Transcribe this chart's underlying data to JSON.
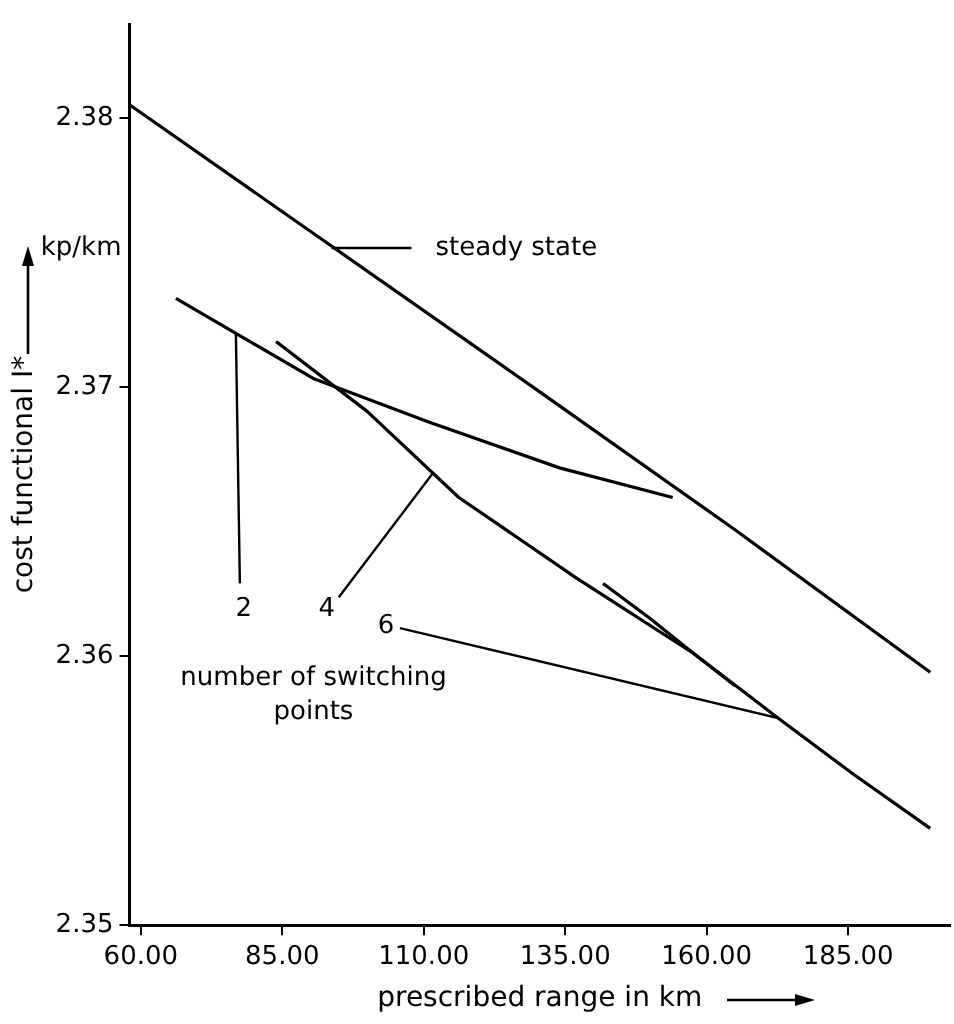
{
  "chart_data": {
    "type": "line",
    "xlabel": "prescribed range in km",
    "ylabel": "cost functional I*",
    "xlim": [
      58,
      203
    ],
    "ylim": [
      2.35,
      2.3835
    ],
    "xticks": [
      {
        "value": 60,
        "label": "60.00"
      },
      {
        "value": 85,
        "label": "85.00"
      },
      {
        "value": 110,
        "label": "110.00"
      },
      {
        "value": 135,
        "label": "135.00"
      },
      {
        "value": 160,
        "label": "160.00"
      },
      {
        "value": 185,
        "label": "185.00"
      }
    ],
    "yticks": [
      2.35,
      2.36,
      2.37,
      2.38
    ],
    "legend": false,
    "marker": "none",
    "line_style": "solid",
    "grid": false,
    "series": [
      {
        "color": "#000000",
        "x": [
          58,
          94,
          130,
          165,
          199.5
        ],
        "values": [
          2.3805,
          2.3752,
          2.3699,
          2.3647,
          2.3594
        ]
      },
      {
        "color": "#000000",
        "x": [
          66.2,
          76.8,
          90.7,
          111,
          134,
          154
        ],
        "values": [
          2.3733,
          2.372,
          2.3703,
          2.3687,
          2.367,
          2.3659
        ]
      },
      {
        "color": "#000000",
        "x": [
          83.9,
          100,
          116.2,
          137,
          157.7,
          172.6,
          186,
          199.5
        ],
        "values": [
          2.3717,
          2.3691,
          2.3659,
          2.3629,
          2.3601,
          2.3577,
          2.3556,
          2.3536
        ]
      },
      {
        "color": "#000000",
        "x": [
          141.7,
          150,
          157.7,
          165
        ],
        "values": [
          2.3627,
          2.3614,
          2.3601,
          2.3589
        ]
      }
    ],
    "annotations": [
      "steady state",
      {
        "text": "2",
        "x": 76.8,
        "y": 2.372
      },
      {
        "text": "4",
        "x": 111.6,
        "y": 2.3668
      },
      {
        "text": "6",
        "x": 172.6,
        "y": 2.3577
      },
      "number of switching points",
      "kp/km"
    ]
  }
}
